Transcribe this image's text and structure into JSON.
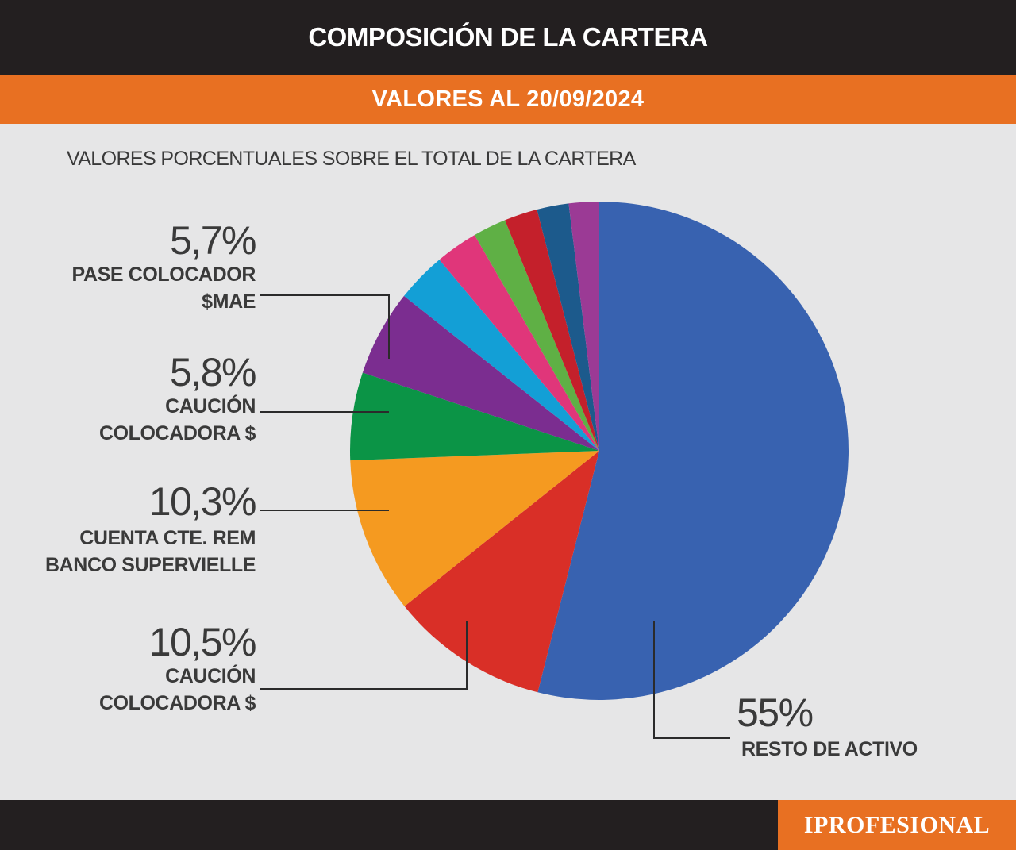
{
  "header": {
    "title": "COMPOSICIÓN DE LA CARTERA"
  },
  "subheader": {
    "title": "VALORES AL 20/09/2024"
  },
  "caption": "VALORES PORCENTUALES SOBRE EL TOTAL DE LA CARTERA",
  "brand": {
    "text": "IPROFESIONAL",
    "color": "#e87022"
  },
  "chart_data": {
    "type": "pie",
    "title": "COMPOSICIÓN DE LA CARTERA",
    "subtitle": "VALORES AL 20/09/2024",
    "start": "12 o'clock",
    "direction": "clockwise",
    "slices": [
      {
        "label": "RESTO DE ACTIVO",
        "value": 55,
        "value_label": "55%",
        "color": "#3862b0"
      },
      {
        "label": "CAUCIÓN COLOCADORA $",
        "value": 10.5,
        "value_label": "10,5%",
        "color": "#d92f27"
      },
      {
        "label": "CUENTA CTE. REM BANCO SUPERVIELLE",
        "value": 10.3,
        "value_label": "10,3%",
        "color": "#f59a20"
      },
      {
        "label": "CAUCIÓN COLOCADORA $",
        "value": 5.8,
        "value_label": "5,8%",
        "color": "#0b9446"
      },
      {
        "label": "PASE COLOCADOR $MAE",
        "value": 5.7,
        "value_label": "5,7%",
        "color": "#7b2d90"
      },
      {
        "label": "",
        "value": 3.3,
        "color": "#139fd6"
      },
      {
        "label": "",
        "value": 2.8,
        "color": "#e0367a"
      },
      {
        "label": "",
        "value": 2.2,
        "color": "#5fb045"
      },
      {
        "label": "",
        "value": 2.2,
        "color": "#c4202b"
      },
      {
        "label": "",
        "value": 2.1,
        "color": "#1c5a8c"
      },
      {
        "label": "",
        "value": 2.0,
        "color": "#9b3a95"
      }
    ]
  }
}
